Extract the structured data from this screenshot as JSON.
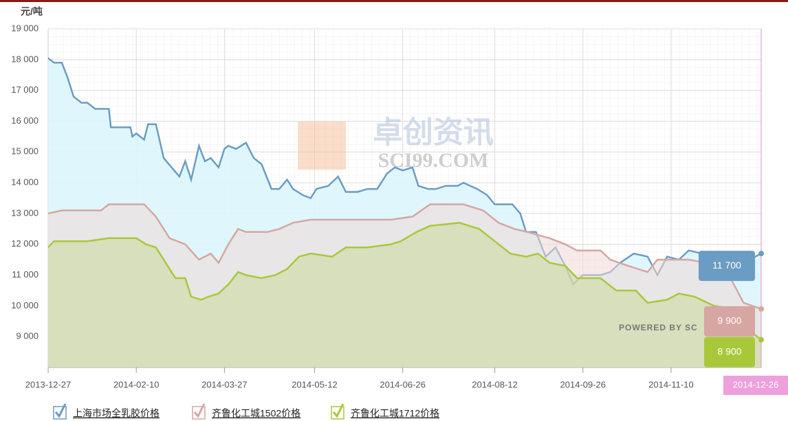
{
  "chart_data": {
    "type": "area",
    "y_label": "元/吨",
    "xlim": [
      "2013-12-27",
      "2014-12-26"
    ],
    "xticks": [
      "2013-12-27",
      "2014-02-10",
      "2014-03-27",
      "2014-05-12",
      "2014-06-26",
      "2014-08-12",
      "2014-09-26",
      "2014-11-10"
    ],
    "crosshair": "2014-12-26",
    "ylim": [
      8000,
      19000
    ],
    "yticks": [
      {
        "value": 9000,
        "label": "9 000"
      },
      {
        "value": 10000,
        "label": "10 000"
      },
      {
        "value": 11000,
        "label": "11 000"
      },
      {
        "value": 12000,
        "label": "12 000"
      },
      {
        "value": 13000,
        "label": "13 000"
      },
      {
        "value": 14000,
        "label": "14 000"
      },
      {
        "value": 15000,
        "label": "15 000"
      },
      {
        "value": 16000,
        "label": "16 000"
      },
      {
        "value": 17000,
        "label": "17 000"
      },
      {
        "value": 18000,
        "label": "18 000"
      },
      {
        "value": 19000,
        "label": "19 000"
      }
    ],
    "grid": true,
    "watermark": [
      "卓创资讯",
      "SCI99.COM",
      "POWERED BY SC"
    ],
    "series": [
      {
        "name": "上海市场全乳胶价格",
        "color": "#6b9cc4",
        "fill": "#dcf6fc",
        "x": [
          "2013-12-27",
          "2013-12-30",
          "2014-01-03",
          "2014-01-06",
          "2014-01-09",
          "2014-01-13",
          "2014-01-16",
          "2014-01-20",
          "2014-01-27",
          "2014-01-28",
          "2014-02-07",
          "2014-02-08",
          "2014-02-10",
          "2014-02-14",
          "2014-02-16",
          "2014-02-20",
          "2014-02-24",
          "2014-02-28",
          "2014-03-04",
          "2014-03-07",
          "2014-03-10",
          "2014-03-14",
          "2014-03-17",
          "2014-03-20",
          "2014-03-24",
          "2014-03-27",
          "2014-03-29",
          "2014-04-02",
          "2014-04-07",
          "2014-04-11",
          "2014-04-15",
          "2014-04-20",
          "2014-04-24",
          "2014-04-28",
          "2014-05-01",
          "2014-05-06",
          "2014-05-10",
          "2014-05-13",
          "2014-05-19",
          "2014-05-24",
          "2014-05-28",
          "2014-06-03",
          "2014-06-08",
          "2014-06-13",
          "2014-06-18",
          "2014-06-22",
          "2014-06-26",
          "2014-07-01",
          "2014-07-04",
          "2014-07-09",
          "2014-07-13",
          "2014-07-18",
          "2014-07-24",
          "2014-07-27",
          "2014-08-03",
          "2014-08-08",
          "2014-08-12",
          "2014-08-17",
          "2014-08-21",
          "2014-08-25",
          "2014-08-28",
          "2014-09-02",
          "2014-09-07",
          "2014-09-12",
          "2014-09-17",
          "2014-09-21",
          "2014-09-26",
          "2014-10-05",
          "2014-10-10",
          "2014-10-15",
          "2014-10-22",
          "2014-10-29",
          "2014-11-03",
          "2014-11-08",
          "2014-11-14",
          "2014-11-19",
          "2014-12-03",
          "2014-12-12",
          "2014-12-17",
          "2014-12-26"
        ],
        "values": [
          18050,
          17900,
          17900,
          17400,
          16800,
          16600,
          16600,
          16400,
          16400,
          15800,
          15800,
          15500,
          15600,
          15400,
          15900,
          15900,
          14800,
          14500,
          14200,
          14700,
          14100,
          15200,
          14700,
          14800,
          14500,
          15100,
          15200,
          15100,
          15300,
          14800,
          14600,
          13800,
          13800,
          14100,
          13800,
          13600,
          13500,
          13800,
          13900,
          14200,
          13700,
          13700,
          13800,
          13800,
          14300,
          14500,
          14400,
          14500,
          13900,
          13800,
          13800,
          13900,
          13900,
          14000,
          13800,
          13600,
          13300,
          13300,
          13300,
          13000,
          12400,
          12400,
          11600,
          11900,
          11300,
          10700,
          11000,
          11000,
          11100,
          11400,
          11700,
          11600,
          11000,
          11600,
          11500,
          11800,
          11600,
          11400,
          11400,
          11700
        ],
        "value_labels": {
          "79": "11 700"
        }
      },
      {
        "name": "齐鲁化工城1502价格",
        "color": "#d6a6a2",
        "fill": "#f0d8d6",
        "x": [
          "2013-12-27",
          "2014-01-03",
          "2014-01-16",
          "2014-01-23",
          "2014-01-27",
          "2014-02-10",
          "2014-02-14",
          "2014-02-20",
          "2014-02-27",
          "2014-03-07",
          "2014-03-14",
          "2014-03-20",
          "2014-03-24",
          "2014-03-29",
          "2014-04-03",
          "2014-04-07",
          "2014-04-18",
          "2014-04-24",
          "2014-05-01",
          "2014-05-10",
          "2014-05-21",
          "2014-06-03",
          "2014-06-20",
          "2014-07-01",
          "2014-07-10",
          "2014-07-27",
          "2014-08-06",
          "2014-08-14",
          "2014-08-22",
          "2014-08-29",
          "2014-09-03",
          "2014-09-09",
          "2014-09-17",
          "2014-09-23",
          "2014-10-05",
          "2014-10-10",
          "2014-10-19",
          "2014-10-29",
          "2014-11-03",
          "2014-11-19",
          "2014-12-07",
          "2014-12-17",
          "2014-12-26"
        ],
        "values": [
          13000,
          13100,
          13100,
          13100,
          13300,
          13300,
          13300,
          12900,
          12200,
          12000,
          11500,
          11700,
          11400,
          12000,
          12500,
          12400,
          12400,
          12500,
          12700,
          12800,
          12800,
          12800,
          12800,
          12900,
          13300,
          13300,
          13100,
          12700,
          12500,
          12400,
          12300,
          12200,
          12000,
          11800,
          11800,
          11500,
          11300,
          11100,
          11500,
          11500,
          11300,
          10100,
          9900
        ],
        "value_labels": {
          "42": "9 900"
        }
      },
      {
        "name": "齐鲁化工城1712价格",
        "color": "#a8c83a",
        "fill": "#c9d99a",
        "x": [
          "2013-12-27",
          "2013-12-30",
          "2014-01-06",
          "2014-01-16",
          "2014-01-27",
          "2014-02-10",
          "2014-02-15",
          "2014-02-20",
          "2014-02-25",
          "2014-03-02",
          "2014-03-07",
          "2014-03-10",
          "2014-03-15",
          "2014-03-19",
          "2014-03-24",
          "2014-03-29",
          "2014-04-03",
          "2014-04-07",
          "2014-04-15",
          "2014-04-22",
          "2014-04-28",
          "2014-05-04",
          "2014-05-10",
          "2014-05-21",
          "2014-05-28",
          "2014-06-08",
          "2014-06-20",
          "2014-06-25",
          "2014-07-03",
          "2014-07-10",
          "2014-07-25",
          "2014-08-04",
          "2014-08-12",
          "2014-08-20",
          "2014-08-28",
          "2014-09-03",
          "2014-09-09",
          "2014-09-17",
          "2014-09-23",
          "2014-10-05",
          "2014-10-13",
          "2014-10-23",
          "2014-10-29",
          "2014-11-08",
          "2014-11-14",
          "2014-11-22",
          "2014-12-02",
          "2014-12-12",
          "2014-12-20",
          "2014-12-26"
        ],
        "values": [
          11900,
          12100,
          12100,
          12100,
          12200,
          12200,
          12000,
          11900,
          11400,
          10900,
          10900,
          10300,
          10200,
          10300,
          10400,
          10700,
          11100,
          11000,
          10900,
          11000,
          11200,
          11600,
          11700,
          11600,
          11900,
          11900,
          12000,
          12100,
          12400,
          12600,
          12700,
          12500,
          12100,
          11700,
          11600,
          11700,
          11400,
          11300,
          10900,
          10900,
          10500,
          10500,
          10100,
          10200,
          10400,
          10300,
          10000,
          9900,
          9200,
          8900
        ],
        "value_labels": {
          "49": "8 900"
        }
      }
    ]
  }
}
